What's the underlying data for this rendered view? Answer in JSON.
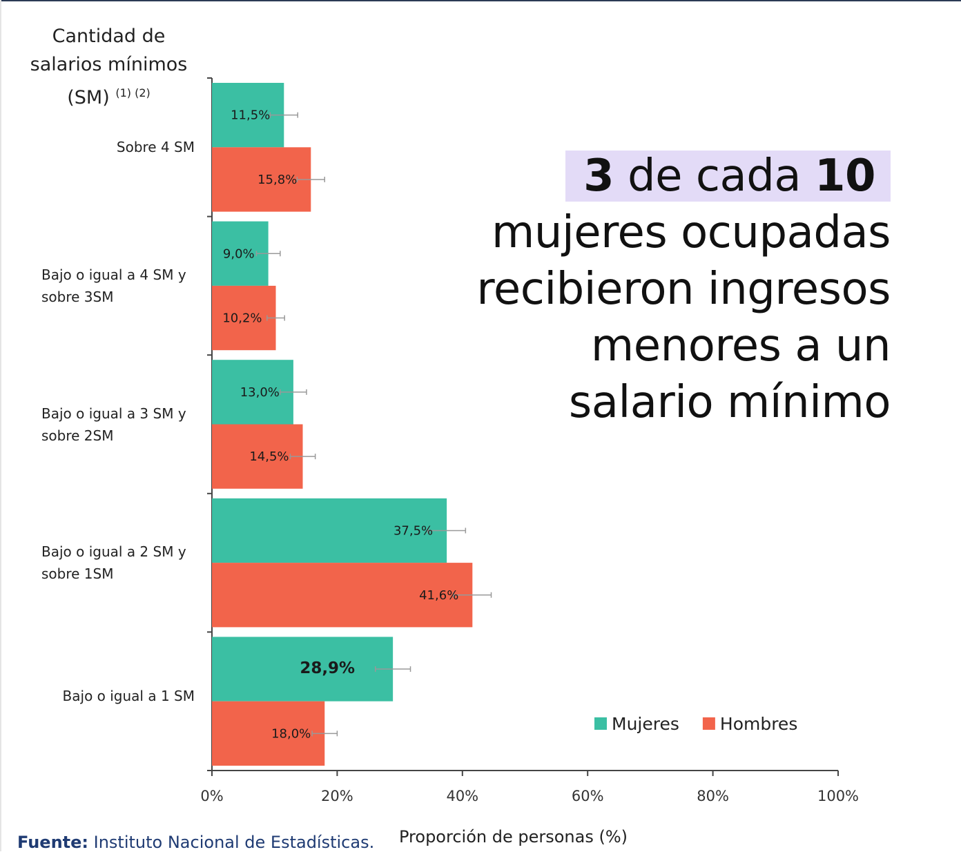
{
  "chart_data": {
    "type": "bar",
    "orientation": "horizontal",
    "y_label": "Cantidad de salarios mínimos (SM)",
    "y_label_notes": "(1) (2)",
    "x_label": "Proporción de personas (%)",
    "categories": [
      "Sobre 4 SM",
      "Bajo o igual a 4 SM y sobre 3SM",
      "Bajo o igual a 3 SM y sobre 2SM",
      "Bajo o igual a 2 SM y sobre 1SM",
      "Bajo o igual a 1 SM"
    ],
    "series": [
      {
        "name": "Mujeres",
        "color": "#3bbfa3",
        "values": [
          11.5,
          9.0,
          13.0,
          37.5,
          28.9
        ],
        "value_labels": [
          "11,5%",
          "9,0%",
          "13,0%",
          "37,5%",
          "28,9%"
        ],
        "errors": [
          2.2,
          1.9,
          2.1,
          3.0,
          2.8
        ]
      },
      {
        "name": "Hombres",
        "color": "#f2644b",
        "values": [
          15.8,
          10.2,
          14.5,
          41.6,
          18.0
        ],
        "value_labels": [
          "15,8%",
          "10,2%",
          "14,5%",
          "41,6%",
          "18,0%"
        ],
        "errors": [
          2.2,
          1.4,
          2.0,
          3.0,
          2.0
        ]
      }
    ],
    "emphasis": {
      "series": 0,
      "category": 4
    },
    "xlim": [
      0,
      100
    ],
    "xticks": [
      {
        "value": 0,
        "label": "0%"
      },
      {
        "value": 20,
        "label": "20%"
      },
      {
        "value": 40,
        "label": "40%"
      },
      {
        "value": 60,
        "label": "60%"
      },
      {
        "value": 80,
        "label": "80%"
      },
      {
        "value": 100,
        "label": "100%"
      }
    ],
    "legend": "lower right",
    "annotation": {
      "highlight": [
        "3",
        "de cada",
        "10"
      ],
      "lines": [
        "mujeres ocupadas",
        "recibieron ingresos",
        "menores a un",
        "salario mínimo"
      ]
    },
    "source": {
      "label": "Fuente:",
      "text": "Instituto Nacional de Estadísticas."
    }
  }
}
